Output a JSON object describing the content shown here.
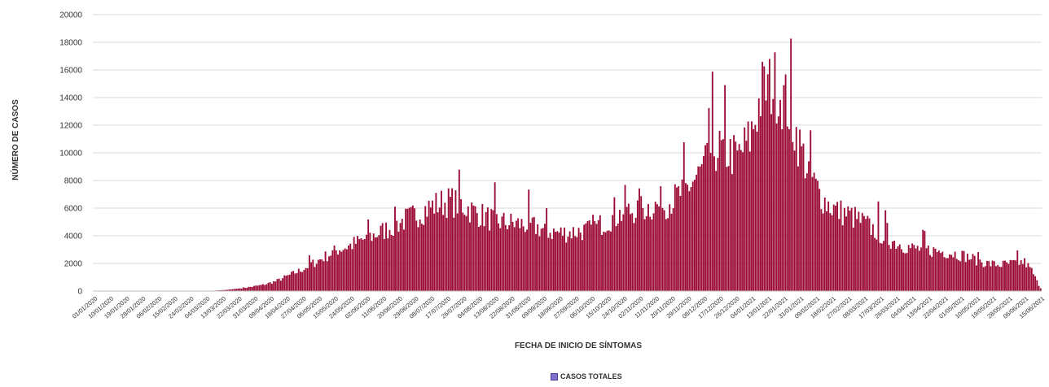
{
  "chart_data": {
    "type": "bar",
    "ylabel": "NÚMERO DE CASOS",
    "xlabel": "FECHA DE INICIO DE SÍNTOMAS",
    "ylim": [
      0,
      20000
    ],
    "yticks": [
      0,
      2000,
      4000,
      6000,
      8000,
      10000,
      12000,
      14000,
      16000,
      18000,
      20000
    ],
    "grid": true,
    "legend_position": "bottom",
    "date_range": [
      "2020-01-01",
      "2021-06-15"
    ],
    "x_tick_labels": [
      "01/01/2020",
      "10/01/2020",
      "19/01/2020",
      "28/01/2020",
      "06/02/2020",
      "15/02/2020",
      "24/02/2020",
      "04/03/2020",
      "13/03/2020",
      "22/03/2020",
      "31/03/2020",
      "09/04/2020",
      "18/04/2020",
      "27/04/2020",
      "06/05/2020",
      "15/05/2020",
      "24/05/2020",
      "02/06/2020",
      "11/06/2020",
      "20/06/2020",
      "29/06/2020",
      "08/07/2020",
      "17/07/2020",
      "26/07/2020",
      "04/08/2020",
      "13/08/2020",
      "22/08/2020",
      "31/08/2020",
      "09/09/2020",
      "18/09/2020",
      "27/09/2020",
      "06/10/2020",
      "15/10/2020",
      "24/10/2020",
      "02/11/2020",
      "11/11/2020",
      "20/11/2020",
      "29/11/2020",
      "08/12/2020",
      "17/12/2020",
      "26/12/2020",
      "04/01/2021",
      "13/01/2021",
      "22/01/2021",
      "31/01/2021",
      "09/02/2021",
      "18/02/2021",
      "27/02/2021",
      "08/03/2021",
      "17/03/2021",
      "26/03/2021",
      "04/04/2021",
      "13/04/2021",
      "22/04/2021",
      "01/05/2021",
      "10/05/2021",
      "19/05/2021",
      "28/05/2021",
      "06/06/2021",
      "15/06/2021"
    ],
    "series": [
      {
        "name": "CASOS TOTALES",
        "color": "#9b0a35",
        "points": [
          [
            "2020-01-01",
            5
          ],
          [
            "2020-02-01",
            8
          ],
          [
            "2020-03-01",
            15
          ],
          [
            "2020-03-08",
            30
          ],
          [
            "2020-03-15",
            80
          ],
          [
            "2020-03-22",
            180
          ],
          [
            "2020-03-29",
            300
          ],
          [
            "2020-04-05",
            450
          ],
          [
            "2020-04-12",
            700
          ],
          [
            "2020-04-19",
            1100
          ],
          [
            "2020-04-26",
            1500
          ],
          [
            "2020-05-03",
            2000
          ],
          [
            "2020-05-10",
            2500
          ],
          [
            "2020-05-17",
            3000
          ],
          [
            "2020-05-24",
            3300
          ],
          [
            "2020-05-31",
            3700
          ],
          [
            "2020-06-07",
            4100
          ],
          [
            "2020-06-14",
            4500
          ],
          [
            "2020-06-21",
            5000
          ],
          [
            "2020-06-28",
            5400
          ],
          [
            "2020-07-05",
            5900
          ],
          [
            "2020-07-12",
            6300
          ],
          [
            "2020-07-19",
            6500
          ],
          [
            "2020-07-26",
            6200
          ],
          [
            "2020-08-02",
            5700
          ],
          [
            "2020-08-09",
            5300
          ],
          [
            "2020-08-16",
            5000
          ],
          [
            "2020-08-23",
            4900
          ],
          [
            "2020-08-30",
            4800
          ],
          [
            "2020-09-06",
            4600
          ],
          [
            "2020-09-13",
            4300
          ],
          [
            "2020-09-20",
            4200
          ],
          [
            "2020-09-27",
            4300
          ],
          [
            "2020-10-04",
            4400
          ],
          [
            "2020-10-11",
            4800
          ],
          [
            "2020-10-18",
            5300
          ],
          [
            "2020-10-25",
            5700
          ],
          [
            "2020-11-01",
            5900
          ],
          [
            "2020-11-08",
            6100
          ],
          [
            "2020-11-15",
            6200
          ],
          [
            "2020-11-22",
            6700
          ],
          [
            "2020-11-29",
            7500
          ],
          [
            "2020-12-06",
            8500
          ],
          [
            "2020-12-13",
            10300
          ],
          [
            "2020-12-20",
            10100
          ],
          [
            "2020-12-27",
            9700
          ],
          [
            "2021-01-03",
            11000
          ],
          [
            "2021-01-10",
            14500
          ],
          [
            "2021-01-17",
            15000
          ],
          [
            "2021-01-24",
            13500
          ],
          [
            "2021-01-31",
            10500
          ],
          [
            "2021-02-07",
            8000
          ],
          [
            "2021-02-14",
            6500
          ],
          [
            "2021-02-21",
            5800
          ],
          [
            "2021-02-28",
            5500
          ],
          [
            "2021-03-07",
            5000
          ],
          [
            "2021-03-14",
            4400
          ],
          [
            "2021-03-21",
            3800
          ],
          [
            "2021-03-28",
            3400
          ],
          [
            "2021-04-04",
            3100
          ],
          [
            "2021-04-11",
            3000
          ],
          [
            "2021-04-18",
            2900
          ],
          [
            "2021-04-25",
            2800
          ],
          [
            "2021-05-02",
            2600
          ],
          [
            "2021-05-09",
            2300
          ],
          [
            "2021-05-16",
            2000
          ],
          [
            "2021-05-23",
            1900
          ],
          [
            "2021-05-30",
            2000
          ],
          [
            "2021-06-06",
            2100
          ],
          [
            "2021-06-10",
            1500
          ],
          [
            "2021-06-13",
            700
          ],
          [
            "2021-06-15",
            200
          ]
        ]
      }
    ]
  }
}
